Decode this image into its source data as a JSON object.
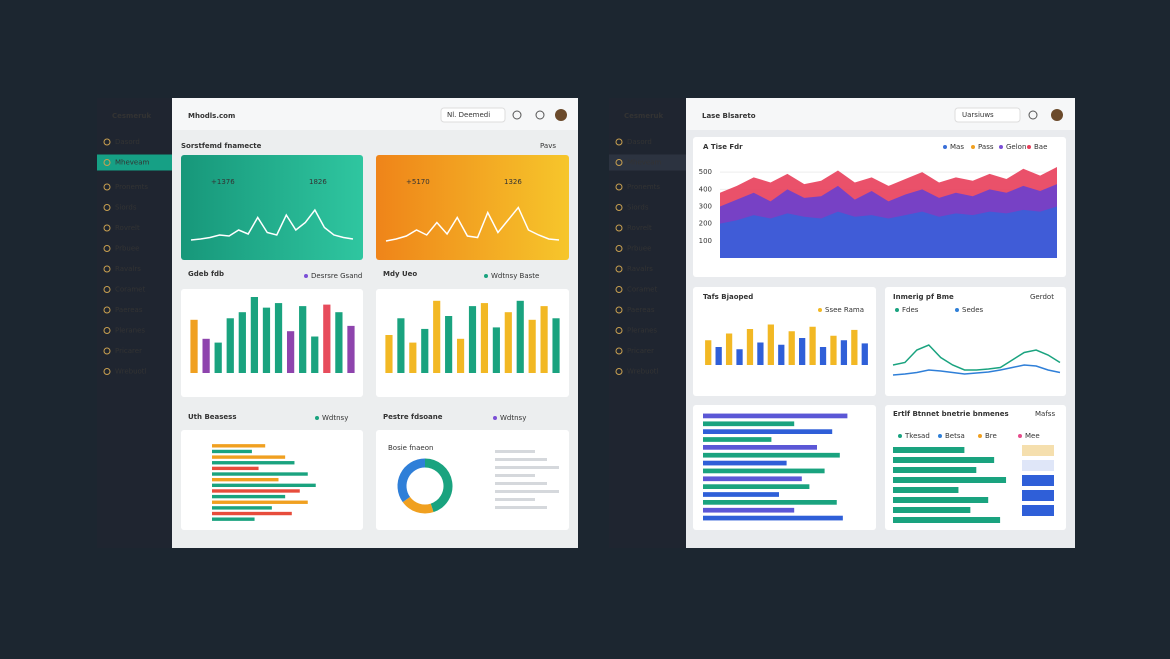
{
  "left": {
    "brand": "Cesmeruk",
    "nav": [
      "Dasord",
      "Mheveam",
      "Pronemts",
      "Siords",
      "Rovrelt",
      "Prbuee",
      "Ravalrs",
      "Coramet",
      "Paereas",
      "Pleranes",
      "Pricarer",
      "Wrebuotl"
    ],
    "header_title": "Mhodls.com",
    "search": "Nl. Deemedi",
    "section_title": "Sorstfemd fnamecte",
    "section_link": "Pavs",
    "cards": [
      {
        "color_from": "#17977a",
        "color_to": "#2fc6a0",
        "labels": [
          "+1376",
          "1826"
        ],
        "range": [
          0,
          100
        ],
        "wave": [
          10,
          12,
          15,
          20,
          18,
          30,
          22,
          55,
          25,
          20,
          60,
          30,
          45,
          70,
          35,
          20,
          15,
          12
        ]
      },
      {
        "color_from": "#ef8419",
        "color_to": "#f6c62b",
        "labels": [
          "+5170",
          "1326"
        ],
        "range": [
          0,
          100
        ],
        "wave": [
          8,
          12,
          18,
          30,
          20,
          45,
          22,
          55,
          18,
          15,
          65,
          25,
          50,
          75,
          30,
          20,
          12,
          10
        ]
      }
    ],
    "bar_panels": [
      {
        "title": "Gdeb fdb",
        "legend": "Desrsre Gsand",
        "legend_color": "#7b4fd6",
        "ylim": [
          0,
          100
        ],
        "bars": [
          {
            "value": 70,
            "color": "#f0a020"
          },
          {
            "value": 45,
            "color": "#8e44ad"
          },
          {
            "value": 40,
            "color": "#1aa37f"
          },
          {
            "value": 72,
            "color": "#1aa37f"
          },
          {
            "value": 80,
            "color": "#1aa37f"
          },
          {
            "value": 100,
            "color": "#1aa37f"
          },
          {
            "value": 86,
            "color": "#1aa37f"
          },
          {
            "value": 92,
            "color": "#1aa37f"
          },
          {
            "value": 55,
            "color": "#8e44ad"
          },
          {
            "value": 88,
            "color": "#1aa37f"
          },
          {
            "value": 48,
            "color": "#1aa37f"
          },
          {
            "value": 90,
            "color": "#e74c5c"
          },
          {
            "value": 80,
            "color": "#1aa37f"
          },
          {
            "value": 62,
            "color": "#8e44ad"
          }
        ]
      },
      {
        "title": "Mdy Ueo",
        "legend": "Wdtnsy Baste",
        "legend_color": "#1aa37f",
        "ylim": [
          0,
          100
        ],
        "bars": [
          {
            "value": 50,
            "color": "#f2b824"
          },
          {
            "value": 72,
            "color": "#1aa37f"
          },
          {
            "value": 40,
            "color": "#f2b824"
          },
          {
            "value": 58,
            "color": "#1aa37f"
          },
          {
            "value": 95,
            "color": "#f2b824"
          },
          {
            "value": 75,
            "color": "#1aa37f"
          },
          {
            "value": 45,
            "color": "#f2b824"
          },
          {
            "value": 88,
            "color": "#1aa37f"
          },
          {
            "value": 92,
            "color": "#f2b824"
          },
          {
            "value": 60,
            "color": "#1aa37f"
          },
          {
            "value": 80,
            "color": "#f2b824"
          },
          {
            "value": 95,
            "color": "#1aa37f"
          },
          {
            "value": 70,
            "color": "#f2b824"
          },
          {
            "value": 88,
            "color": "#f2b824"
          },
          {
            "value": 72,
            "color": "#1aa37f"
          }
        ]
      }
    ],
    "hbar_panel": {
      "title": "Uth Beasess",
      "legend": "Wdtnsy",
      "legend_color": "#1aa37f",
      "xlim": [
        0,
        100
      ],
      "rows": [
        {
          "value": 40,
          "color": "#f0a020"
        },
        {
          "value": 30,
          "color": "#1aa37f"
        },
        {
          "value": 55,
          "color": "#f0a020"
        },
        {
          "value": 62,
          "color": "#1aa37f"
        },
        {
          "value": 35,
          "color": "#e74c3c"
        },
        {
          "value": 72,
          "color": "#1aa37f"
        },
        {
          "value": 50,
          "color": "#f0a020"
        },
        {
          "value": 78,
          "color": "#1aa37f"
        },
        {
          "value": 66,
          "color": "#e74c3c"
        },
        {
          "value": 55,
          "color": "#1aa37f"
        },
        {
          "value": 72,
          "color": "#f0a020"
        },
        {
          "value": 45,
          "color": "#1aa37f"
        },
        {
          "value": 60,
          "color": "#e74c3c"
        },
        {
          "value": 32,
          "color": "#1aa37f"
        }
      ]
    },
    "donut_panel": {
      "title": "Pestre fdsoane",
      "legend": "Wdtnsy",
      "subtitle": "Bosie fnaeon",
      "slices": [
        {
          "value": 45,
          "color": "#1aa37f"
        },
        {
          "value": 20,
          "color": "#f0a020"
        },
        {
          "value": 35,
          "color": "#2f7fd8"
        }
      ]
    }
  },
  "right": {
    "brand": "Cesmeruk",
    "nav": [
      "Dasord",
      "Mheveam",
      "Pronemts",
      "Siords",
      "Rovrelt",
      "Prbuee",
      "Ravalrs",
      "Coramet",
      "Paereas",
      "Pleranes",
      "Pricarer",
      "Wrebuotl"
    ],
    "header_title": "Lase Blsareto",
    "search": "Uarsiuws",
    "area_panel": {
      "title": "A Tise Fdr",
      "ylim": [
        0,
        600
      ],
      "yticks": [
        100,
        200,
        300,
        400,
        500
      ],
      "legend": [
        {
          "name": "Mas",
          "color": "#3a6fd8"
        },
        {
          "name": "Pass",
          "color": "#f0a020"
        },
        {
          "name": "Gelon",
          "color": "#7b4fd6"
        },
        {
          "name": "Bae",
          "color": "#e83e5a"
        }
      ],
      "series": [
        {
          "color": "#e83e5a",
          "values": [
            380,
            420,
            470,
            440,
            490,
            430,
            450,
            510,
            440,
            470,
            420,
            460,
            500,
            440,
            470,
            450,
            490,
            460,
            520,
            480,
            530
          ]
        },
        {
          "color": "#6a3fcf",
          "values": [
            300,
            340,
            380,
            330,
            400,
            350,
            360,
            420,
            340,
            390,
            330,
            370,
            400,
            350,
            380,
            360,
            400,
            380,
            420,
            390,
            430
          ]
        },
        {
          "color": "#3a5fd8",
          "values": [
            200,
            220,
            250,
            230,
            260,
            240,
            230,
            270,
            240,
            250,
            230,
            250,
            270,
            240,
            260,
            250,
            270,
            260,
            280,
            270,
            300
          ]
        }
      ]
    },
    "vbar_panel": {
      "title": "Tafs Bjaoped",
      "legend": "Ssee Rama",
      "legend_color": "#f2b824",
      "ylim": [
        0,
        100
      ],
      "bars": [
        {
          "value": 55,
          "color": "#f2b824"
        },
        {
          "value": 40,
          "color": "#2f5fd8"
        },
        {
          "value": 70,
          "color": "#f2b824"
        },
        {
          "value": 35,
          "color": "#2f5fd8"
        },
        {
          "value": 80,
          "color": "#f2b824"
        },
        {
          "value": 50,
          "color": "#2f5fd8"
        },
        {
          "value": 90,
          "color": "#f2b824"
        },
        {
          "value": 45,
          "color": "#2f5fd8"
        },
        {
          "value": 75,
          "color": "#f2b824"
        },
        {
          "value": 60,
          "color": "#2f5fd8"
        },
        {
          "value": 85,
          "color": "#f2b824"
        },
        {
          "value": 40,
          "color": "#2f5fd8"
        },
        {
          "value": 65,
          "color": "#f2b824"
        },
        {
          "value": 55,
          "color": "#2f5fd8"
        },
        {
          "value": 78,
          "color": "#f2b824"
        },
        {
          "value": 48,
          "color": "#2f5fd8"
        }
      ]
    },
    "line_panel": {
      "title": "Inmerig pf Bme",
      "link": "Gerdot",
      "legend": [
        "Fdes",
        "Sedes"
      ],
      "ylim": [
        0,
        100
      ],
      "series": [
        {
          "color": "#1aa37f",
          "values": [
            40,
            45,
            70,
            80,
            55,
            40,
            30,
            30,
            32,
            35,
            50,
            65,
            70,
            60,
            45
          ]
        },
        {
          "color": "#2f7fd8",
          "values": [
            20,
            22,
            25,
            30,
            28,
            25,
            22,
            24,
            26,
            30,
            35,
            40,
            38,
            30,
            25
          ]
        }
      ]
    },
    "hbar_panel": {
      "xlim": [
        0,
        100
      ],
      "rows": [
        {
          "value": 95,
          "color": "#5b57d6"
        },
        {
          "value": 60,
          "color": "#1aa37f"
        },
        {
          "value": 85,
          "color": "#2f5fd8"
        },
        {
          "value": 45,
          "color": "#1aa37f"
        },
        {
          "value": 75,
          "color": "#5b57d6"
        },
        {
          "value": 90,
          "color": "#1aa37f"
        },
        {
          "value": 55,
          "color": "#2f5fd8"
        },
        {
          "value": 80,
          "color": "#1aa37f"
        },
        {
          "value": 65,
          "color": "#5b57d6"
        },
        {
          "value": 70,
          "color": "#1aa37f"
        },
        {
          "value": 50,
          "color": "#2f5fd8"
        },
        {
          "value": 88,
          "color": "#1aa37f"
        },
        {
          "value": 60,
          "color": "#5b57d6"
        },
        {
          "value": 92,
          "color": "#2f5fd8"
        }
      ]
    },
    "hbar_panel2": {
      "title": "Ertlf Btnnet bnetrie bnmenes",
      "link": "Mafss",
      "xlim": [
        0,
        100
      ],
      "legend": [
        {
          "name": "Tkesad",
          "color": "#1aa37f"
        },
        {
          "name": "Betsa",
          "color": "#2f7fd8"
        },
        {
          "name": "Bre",
          "color": "#f0a020"
        },
        {
          "name": "Mee",
          "color": "#e74c8c"
        }
      ],
      "rows": [
        {
          "value": 60,
          "color": "#1aa37f"
        },
        {
          "value": 85,
          "color": "#1aa37f"
        },
        {
          "value": 70,
          "color": "#1aa37f"
        },
        {
          "value": 95,
          "color": "#1aa37f"
        },
        {
          "value": 55,
          "color": "#1aa37f"
        },
        {
          "value": 80,
          "color": "#1aa37f"
        },
        {
          "value": 65,
          "color": "#1aa37f"
        },
        {
          "value": 90,
          "color": "#1aa37f"
        }
      ]
    }
  }
}
